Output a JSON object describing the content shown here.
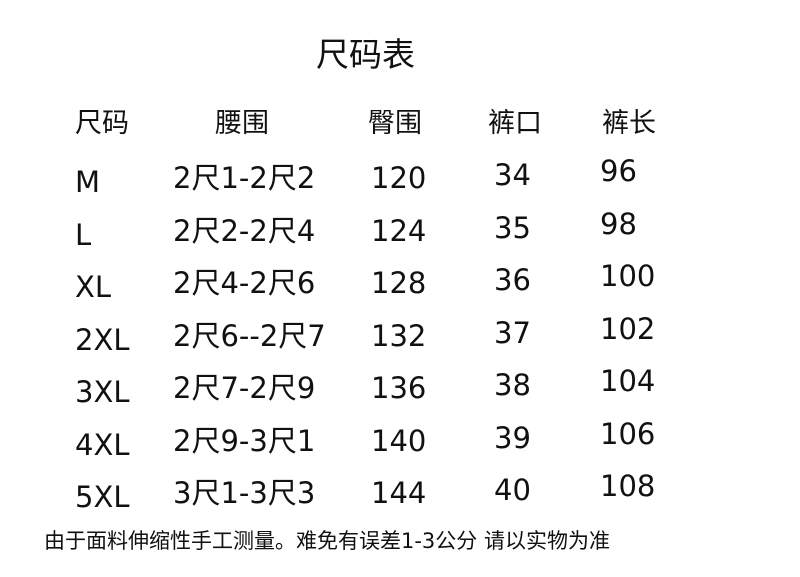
{
  "title": "尺码表",
  "table": {
    "headers": [
      "尺码",
      "腰围",
      "臀围",
      "裤口",
      "裤长"
    ],
    "rows": [
      [
        "M",
        "2尺1-2尺2",
        "120",
        "34",
        "96"
      ],
      [
        "L",
        "2尺2-2尺4",
        "124",
        "35",
        "98"
      ],
      [
        "XL",
        "2尺4-2尺6",
        "128",
        "36",
        "100"
      ],
      [
        "2XL",
        "2尺6--2尺7",
        "132",
        "37",
        "102"
      ],
      [
        "3XL",
        "2尺7-2尺9",
        "136",
        "38",
        "104"
      ],
      [
        "4XL",
        "2尺9-3尺1",
        "140",
        "39",
        "106"
      ],
      [
        "5XL",
        "3尺1-3尺3",
        "144",
        "40",
        "108"
      ]
    ]
  },
  "footer": "由于面料伸缩性手工测量。难免有误差1-3公分  请以实物为准"
}
